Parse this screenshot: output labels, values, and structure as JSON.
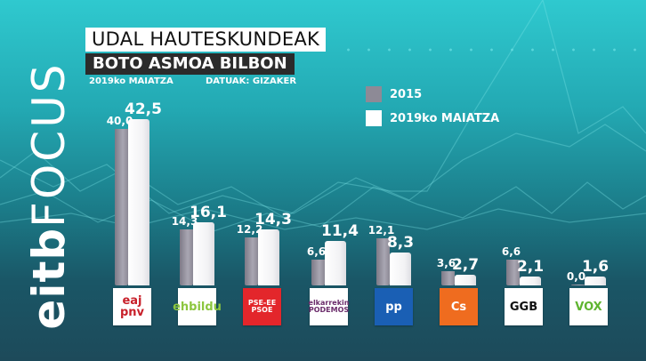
{
  "header": {
    "title": "UDAL HAUTESKUNDEAK",
    "subtitle": "BOTO ASMOA BILBON",
    "date": "2019ko MAIATZA",
    "source": "DATUAK: GIZAKER"
  },
  "logo": {
    "part1": "eitb",
    "part2": "FOCUS"
  },
  "legend": [
    {
      "label": "2015",
      "color": "#8d8a96"
    },
    {
      "label": "2019ko MAIATZA",
      "color": "#ffffff"
    }
  ],
  "chart_data": {
    "type": "bar",
    "title": "UDAL HAUTESKUNDEAK — BOTO ASMOA BILBON",
    "subtitle": "2019ko MAIATZA · DATUAK: GIZAKER",
    "categories": [
      "EAJ-PNV",
      "EH Bildu",
      "PSE-EE PSOE",
      "Elkarrekin Podemos",
      "PP",
      "Cs",
      "GGB",
      "VOX"
    ],
    "series": [
      {
        "name": "2015",
        "values": [
          40.0,
          14.3,
          12.2,
          6.6,
          12.1,
          3.6,
          6.6,
          0.0
        ],
        "labels": [
          "40,0",
          "14,3",
          "12,2",
          "6,6",
          "12,1",
          "3,6",
          "6,6",
          "0,0"
        ]
      },
      {
        "name": "2019ko MAIATZA",
        "values": [
          42.5,
          16.1,
          14.3,
          11.4,
          8.3,
          2.7,
          2.1,
          1.6
        ],
        "labels": [
          "42,5",
          "16,1",
          "14,3",
          "11,4",
          "8,3",
          "2,7",
          "2,1",
          "1,6"
        ]
      }
    ],
    "xlabel": "",
    "ylabel": "",
    "grid": false,
    "legend_position": "top-right"
  },
  "parties": [
    {
      "name": "eaj pnv",
      "bg": "#ffffff",
      "fg": "#c8202a"
    },
    {
      "name": "ehbildu",
      "bg": "#ffffff",
      "fg": "#8cc63f"
    },
    {
      "name": "PSE-EE PSOE",
      "bg": "#e3262b",
      "fg": "#ffffff"
    },
    {
      "name": "elkarrekin PODEMOS",
      "bg": "#ffffff",
      "fg": "#6b2c6b"
    },
    {
      "name": "pp",
      "bg": "#1a5fb4",
      "fg": "#ffffff"
    },
    {
      "name": "Cs",
      "bg": "#ef6c1f",
      "fg": "#ffffff"
    },
    {
      "name": "GGB",
      "bg": "#ffffff",
      "fg": "#111111"
    },
    {
      "name": "VOX",
      "bg": "#ffffff",
      "fg": "#5fb531"
    }
  ]
}
